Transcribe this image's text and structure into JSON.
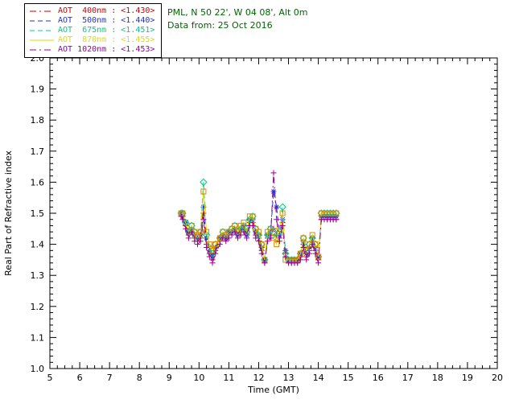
{
  "header": {
    "location_line": "PML, N 50 22', W 04 08', Alt 0m",
    "date_line": "Data from: 25 Oct 2016",
    "text_color": "#006600"
  },
  "chart_data": {
    "type": "line",
    "title": "",
    "xlabel": "Time (GMT)",
    "ylabel": "Real Part of Refractive index",
    "xlim": [
      5,
      20
    ],
    "ylim": [
      1.0,
      2.0
    ],
    "xtick_step": 1,
    "ytick_step": 0.1,
    "grid": false,
    "legend_position": "top-left",
    "x": [
      9.4,
      9.45,
      9.55,
      9.65,
      9.75,
      9.85,
      9.95,
      10.05,
      10.15,
      10.25,
      10.35,
      10.45,
      10.55,
      10.7,
      10.8,
      10.9,
      11.0,
      11.1,
      11.2,
      11.3,
      11.4,
      11.5,
      11.6,
      11.7,
      11.8,
      11.9,
      12.0,
      12.1,
      12.2,
      12.3,
      12.4,
      12.5,
      12.6,
      12.7,
      12.8,
      12.9,
      13.0,
      13.1,
      13.2,
      13.3,
      13.4,
      13.5,
      13.6,
      13.7,
      13.8,
      13.9,
      14.0,
      14.1,
      14.2,
      14.3,
      14.4,
      14.5,
      14.6
    ],
    "series": [
      {
        "label": "AOT  400nm",
        "retrieval": "<1.430>",
        "color": "#cc0000",
        "marker": "plus",
        "dash": "8,4,2,4",
        "values": [
          1.5,
          1.49,
          1.46,
          1.43,
          1.45,
          1.42,
          1.41,
          1.42,
          1.5,
          1.4,
          1.37,
          1.35,
          1.38,
          1.41,
          1.43,
          1.42,
          1.43,
          1.44,
          1.45,
          1.43,
          1.44,
          1.45,
          1.43,
          1.47,
          1.47,
          1.43,
          1.42,
          1.38,
          1.34,
          1.42,
          1.43,
          1.45,
          1.43,
          1.42,
          1.47,
          1.37,
          1.34,
          1.34,
          1.34,
          1.34,
          1.36,
          1.4,
          1.36,
          1.38,
          1.41,
          1.38,
          1.35,
          1.48,
          1.48,
          1.48,
          1.48,
          1.48,
          1.48
        ]
      },
      {
        "label": "AOT  500nm",
        "retrieval": "<1.440>",
        "color": "#2233cc",
        "marker": "asterisk",
        "dash": "6,4",
        "values": [
          1.5,
          1.49,
          1.47,
          1.44,
          1.45,
          1.43,
          1.42,
          1.43,
          1.52,
          1.42,
          1.38,
          1.36,
          1.39,
          1.42,
          1.43,
          1.42,
          1.44,
          1.44,
          1.45,
          1.43,
          1.45,
          1.46,
          1.43,
          1.48,
          1.48,
          1.44,
          1.43,
          1.39,
          1.35,
          1.43,
          1.44,
          1.57,
          1.52,
          1.43,
          1.48,
          1.38,
          1.35,
          1.35,
          1.35,
          1.35,
          1.37,
          1.41,
          1.37,
          1.39,
          1.42,
          1.39,
          1.36,
          1.49,
          1.49,
          1.49,
          1.49,
          1.49,
          1.49
        ]
      },
      {
        "label": "AOT  675nm",
        "retrieval": "<1.451>",
        "color": "#00cc88",
        "marker": "diamond",
        "dash": "6,4",
        "values": [
          1.5,
          1.5,
          1.47,
          1.44,
          1.46,
          1.44,
          1.43,
          1.44,
          1.6,
          1.43,
          1.39,
          1.37,
          1.4,
          1.42,
          1.44,
          1.43,
          1.44,
          1.45,
          1.46,
          1.44,
          1.45,
          1.46,
          1.44,
          1.48,
          1.49,
          1.45,
          1.43,
          1.4,
          1.35,
          1.43,
          1.45,
          1.44,
          1.42,
          1.44,
          1.52,
          1.37,
          1.35,
          1.35,
          1.35,
          1.35,
          1.37,
          1.42,
          1.38,
          1.4,
          1.42,
          1.4,
          1.36,
          1.5,
          1.5,
          1.5,
          1.5,
          1.5,
          1.5
        ]
      },
      {
        "label": "AOT  870nm",
        "retrieval": "<1.455>",
        "color": "#dddd00",
        "marker_color": "#dd8800",
        "marker": "square",
        "dash": "",
        "values": [
          1.5,
          1.5,
          1.47,
          1.44,
          1.46,
          1.44,
          1.43,
          1.44,
          1.57,
          1.44,
          1.4,
          1.38,
          1.4,
          1.42,
          1.44,
          1.43,
          1.44,
          1.45,
          1.46,
          1.44,
          1.46,
          1.47,
          1.44,
          1.49,
          1.49,
          1.45,
          1.44,
          1.4,
          1.35,
          1.44,
          1.45,
          1.42,
          1.4,
          1.45,
          1.5,
          1.35,
          1.35,
          1.35,
          1.35,
          1.35,
          1.37,
          1.42,
          1.38,
          1.4,
          1.43,
          1.4,
          1.36,
          1.5,
          1.5,
          1.5,
          1.5,
          1.5,
          1.5
        ]
      },
      {
        "label": "AOT 1020nm",
        "retrieval": "<1.453>",
        "color": "#990099",
        "marker": "plus",
        "dash": "8,4,2,4",
        "values": [
          1.49,
          1.48,
          1.45,
          1.42,
          1.44,
          1.41,
          1.4,
          1.41,
          1.48,
          1.39,
          1.36,
          1.34,
          1.37,
          1.4,
          1.42,
          1.41,
          1.42,
          1.43,
          1.44,
          1.42,
          1.43,
          1.44,
          1.42,
          1.46,
          1.46,
          1.42,
          1.41,
          1.37,
          1.34,
          1.41,
          1.42,
          1.63,
          1.48,
          1.41,
          1.46,
          1.36,
          1.34,
          1.34,
          1.34,
          1.34,
          1.35,
          1.39,
          1.35,
          1.37,
          1.4,
          1.37,
          1.34,
          1.48,
          1.48,
          1.48,
          1.48,
          1.48,
          1.48
        ]
      }
    ]
  }
}
